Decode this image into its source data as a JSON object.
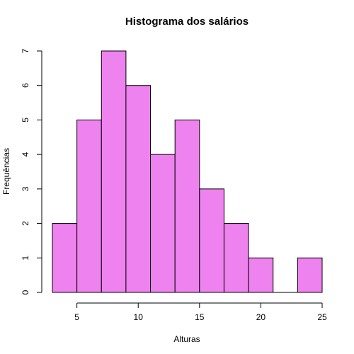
{
  "chart_data": {
    "type": "bar",
    "title": "Histograma dos salários",
    "xlabel": "Alturas",
    "ylabel": "Frequências",
    "bin_edges": [
      3,
      5,
      7,
      9,
      11,
      13,
      15,
      17,
      19,
      21,
      23,
      25
    ],
    "values": [
      2,
      5,
      7,
      6,
      4,
      5,
      3,
      2,
      1,
      0,
      1
    ],
    "xlim": [
      3,
      25
    ],
    "ylim": [
      0,
      7
    ],
    "x_ticks": [
      5,
      10,
      15,
      20,
      25
    ],
    "y_ticks": [
      0,
      1,
      2,
      3,
      4,
      5,
      6,
      7
    ],
    "bar_color": "#EE82EE",
    "grid": false
  }
}
